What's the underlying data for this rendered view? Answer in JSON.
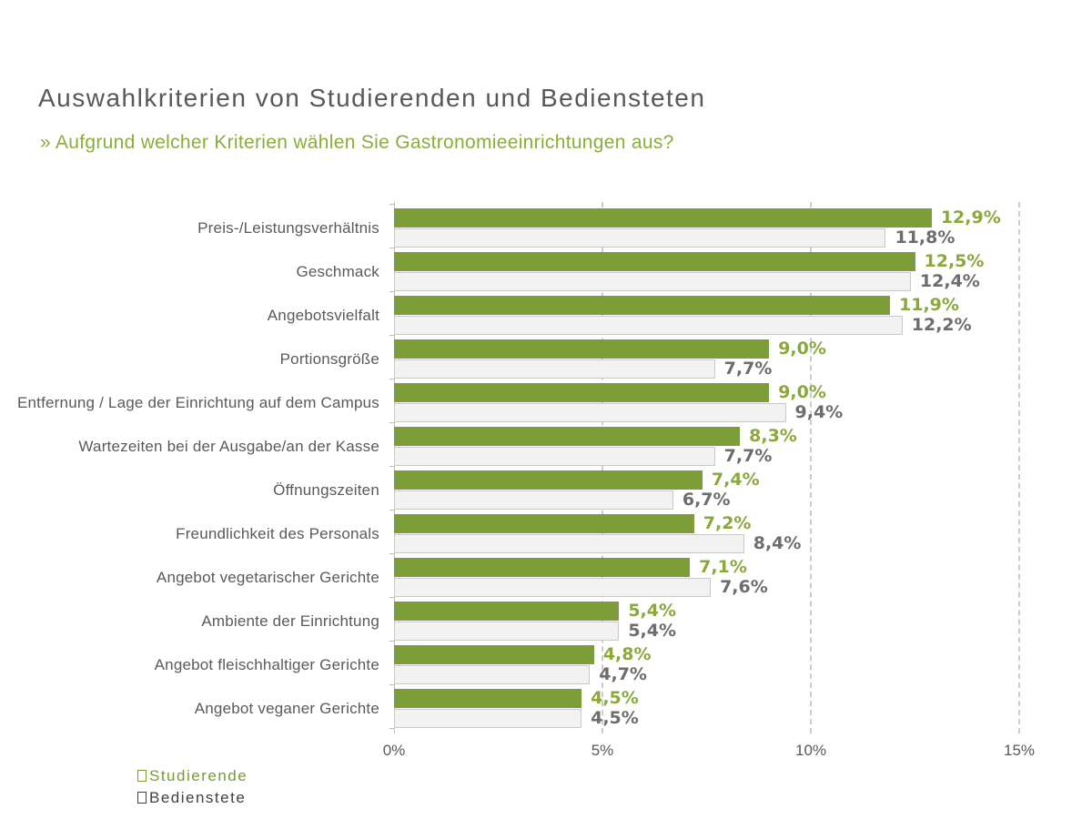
{
  "header": {
    "title": "Auswahlkriterien von Studierenden und Bediensteten",
    "subtitle": "» Aufgrund welcher Kriterien wählen Sie Gastronomieeinrichtungen aus?"
  },
  "colors": {
    "title_gray": "#58585a",
    "subtitle_green": "#8aad3c",
    "bar_green": "#7c9d37",
    "bar_gray_fill": "#f2f2f2",
    "bar_gray_border": "#c9c9c9",
    "value_green": "#8aa83c",
    "value_gray": "#6d6d6d",
    "gridline_gray": "#cccccc",
    "axis_label_gray": "#595959",
    "legend_green": "#7a9b33",
    "legend_dark": "#404040"
  },
  "chart_data": {
    "type": "bar",
    "orientation": "horizontal",
    "title": "Auswahlkriterien von Studierenden und Bediensteten",
    "subtitle": "» Aufgrund welcher Kriterien wählen Sie Gastronomieeinrichtungen aus?",
    "categories": [
      "Preis-/Leistungsverhältnis",
      "Geschmack",
      "Angebotsvielfalt",
      "Portionsgröße",
      "Entfernung / Lage der Einrichtung auf dem Campus",
      "Wartezeiten bei der Ausgabe/an der Kasse",
      "Öffnungszeiten",
      "Freundlichkeit des Personals",
      "Angebot vegetarischer Gerichte",
      "Ambiente der Einrichtung",
      "Angebot fleischhaltiger Gerichte",
      "Angebot veganer Gerichte"
    ],
    "series": [
      {
        "name": "Studierende",
        "values": [
          12.9,
          12.5,
          11.9,
          9.0,
          9.0,
          8.3,
          7.4,
          7.2,
          7.1,
          5.4,
          4.8,
          4.5
        ],
        "labels": [
          "12,9%",
          "12,5%",
          "11,9%",
          "9,0%",
          "9,0%",
          "8,3%",
          "7,4%",
          "7,2%",
          "7,1%",
          "5,4%",
          "4,8%",
          "4,5%"
        ]
      },
      {
        "name": "Bedienstete",
        "values": [
          11.8,
          12.4,
          12.2,
          7.7,
          9.4,
          7.7,
          6.7,
          8.4,
          7.6,
          5.4,
          4.7,
          4.5
        ],
        "labels": [
          "11,8%",
          "12,4%",
          "12,2%",
          "7,7%",
          "9,4%",
          "7,7%",
          "6,7%",
          "8,4%",
          "7,6%",
          "5,4%",
          "4,7%",
          "4,5%"
        ]
      }
    ],
    "x_ticks": [
      "0%",
      "5%",
      "10%",
      "15%"
    ],
    "x_tick_values": [
      0,
      5,
      10,
      15
    ],
    "xlim": [
      0,
      15
    ],
    "grid": "dashed-vertical",
    "legend_position": "bottom-left"
  }
}
